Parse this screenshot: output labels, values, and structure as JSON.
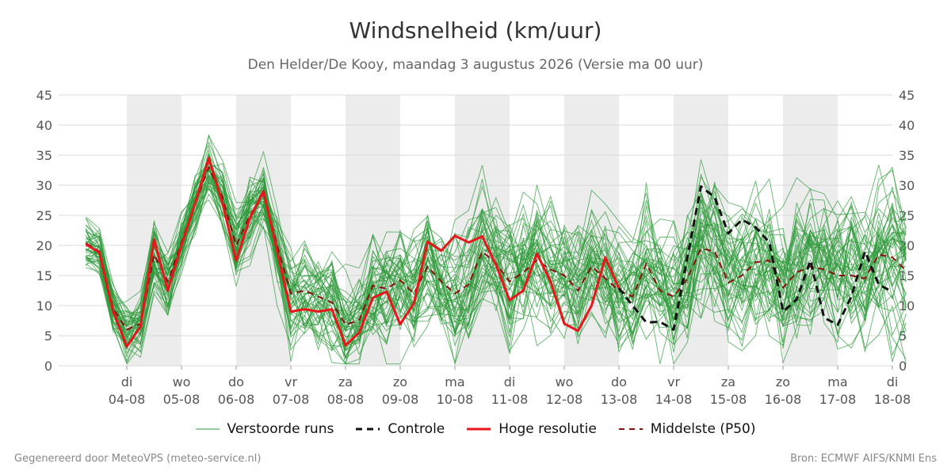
{
  "chart_data": {
    "type": "line",
    "title": "Windsnelheid (km/uur)",
    "subtitle": "Den Helder/De Kooy, maandag  3 augustus 2026 (Versie ma 00 uur)",
    "ylim": [
      0,
      45
    ],
    "yticks": [
      0,
      5,
      10,
      15,
      20,
      25,
      30,
      35,
      40,
      45
    ],
    "grid": true,
    "legend_position": "bottom",
    "x_axis": {
      "start": "03-08 06:00",
      "end": "18-08 00:00",
      "day_labels": [
        {
          "weekday": "di",
          "date": "04-08"
        },
        {
          "weekday": "wo",
          "date": "05-08"
        },
        {
          "weekday": "do",
          "date": "06-08"
        },
        {
          "weekday": "vr",
          "date": "07-08"
        },
        {
          "weekday": "za",
          "date": "08-08"
        },
        {
          "weekday": "zo",
          "date": "09-08"
        },
        {
          "weekday": "ma",
          "date": "10-08"
        },
        {
          "weekday": "di",
          "date": "11-08"
        },
        {
          "weekday": "wo",
          "date": "12-08"
        },
        {
          "weekday": "do",
          "date": "13-08"
        },
        {
          "weekday": "vr",
          "date": "14-08"
        },
        {
          "weekday": "za",
          "date": "15-08"
        },
        {
          "weekday": "zo",
          "date": "16-08"
        },
        {
          "weekday": "ma",
          "date": "17-08"
        },
        {
          "weekday": "di",
          "date": "18-08"
        }
      ]
    },
    "series": [
      {
        "name": "Hoge resolutie",
        "style": "solid",
        "color": "#e8161b",
        "points": [
          [
            "03-08 06:00",
            20.2
          ],
          [
            "03-08 12:00",
            18.8
          ],
          [
            "03-08 18:00",
            9.0
          ],
          [
            "04-08 00:00",
            3.2
          ],
          [
            "04-08 06:00",
            6.5
          ],
          [
            "04-08 12:00",
            21.0
          ],
          [
            "04-08 18:00",
            12.5
          ],
          [
            "05-08 00:00",
            20.0
          ],
          [
            "05-08 06:00",
            27.0
          ],
          [
            "05-08 12:00",
            34.5
          ],
          [
            "05-08 18:00",
            27.0
          ],
          [
            "06-08 00:00",
            17.5
          ],
          [
            "06-08 06:00",
            24.5
          ],
          [
            "06-08 12:00",
            29.0
          ],
          [
            "06-08 18:00",
            19.0
          ],
          [
            "07-08 00:00",
            9.0
          ],
          [
            "07-08 06:00",
            9.4
          ],
          [
            "07-08 12:00",
            9.0
          ],
          [
            "07-08 18:00",
            9.4
          ],
          [
            "08-08 00:00",
            3.4
          ],
          [
            "08-08 06:00",
            5.5
          ],
          [
            "08-08 12:00",
            11.3
          ],
          [
            "08-08 18:00",
            12.3
          ],
          [
            "09-08 00:00",
            6.9
          ],
          [
            "09-08 06:00",
            10.4
          ],
          [
            "09-08 12:00",
            20.6
          ],
          [
            "09-08 18:00",
            19.1
          ],
          [
            "10-08 00:00",
            21.6
          ],
          [
            "10-08 06:00",
            20.5
          ],
          [
            "10-08 12:00",
            21.5
          ],
          [
            "10-08 18:00",
            16.8
          ],
          [
            "11-08 00:00",
            10.9
          ],
          [
            "11-08 06:00",
            12.5
          ],
          [
            "11-08 12:00",
            18.6
          ],
          [
            "11-08 18:00",
            14.0
          ],
          [
            "12-08 00:00",
            7.0
          ],
          [
            "12-08 06:00",
            5.8
          ],
          [
            "12-08 12:00",
            10.0
          ],
          [
            "12-08 18:00",
            18.0
          ],
          [
            "13-08 00:00",
            12.9
          ]
        ]
      },
      {
        "name": "Middelste (P50)",
        "style": "dashed",
        "color": "#8b0e0e",
        "points": [
          [
            "03-08 06:00",
            20.4
          ],
          [
            "03-08 12:00",
            19.0
          ],
          [
            "03-08 18:00",
            9.5
          ],
          [
            "04-08 00:00",
            6.0
          ],
          [
            "04-08 06:00",
            7.0
          ],
          [
            "04-08 12:00",
            18.5
          ],
          [
            "04-08 18:00",
            14.0
          ],
          [
            "05-08 00:00",
            20.5
          ],
          [
            "05-08 06:00",
            27.0
          ],
          [
            "05-08 12:00",
            33.0
          ],
          [
            "05-08 18:00",
            28.0
          ],
          [
            "06-08 00:00",
            20.0
          ],
          [
            "06-08 06:00",
            25.0
          ],
          [
            "06-08 12:00",
            28.5
          ],
          [
            "06-08 18:00",
            20.0
          ],
          [
            "07-08 00:00",
            12.0
          ],
          [
            "07-08 06:00",
            12.5
          ],
          [
            "07-08 12:00",
            11.5
          ],
          [
            "07-08 18:00",
            10.5
          ],
          [
            "08-08 00:00",
            6.8
          ],
          [
            "08-08 06:00",
            7.6
          ],
          [
            "08-08 12:00",
            13.3
          ],
          [
            "08-08 18:00",
            12.8
          ],
          [
            "09-08 00:00",
            14.2
          ],
          [
            "09-08 06:00",
            12.0
          ],
          [
            "09-08 12:00",
            16.5
          ],
          [
            "09-08 18:00",
            14.0
          ],
          [
            "10-08 00:00",
            12.0
          ],
          [
            "10-08 06:00",
            13.5
          ],
          [
            "10-08 12:00",
            19.0
          ],
          [
            "10-08 18:00",
            17.0
          ],
          [
            "11-08 00:00",
            14.0
          ],
          [
            "11-08 06:00",
            15.5
          ],
          [
            "11-08 12:00",
            17.5
          ],
          [
            "11-08 18:00",
            16.0
          ],
          [
            "12-08 00:00",
            15.0
          ],
          [
            "12-08 06:00",
            12.5
          ],
          [
            "12-08 12:00",
            16.5
          ],
          [
            "12-08 18:00",
            14.5
          ],
          [
            "13-08 00:00",
            12.5
          ],
          [
            "13-08 06:00",
            11.5
          ],
          [
            "13-08 12:00",
            17.0
          ],
          [
            "13-08 18:00",
            12.5
          ],
          [
            "14-08 00:00",
            11.5
          ],
          [
            "14-08 06:00",
            14.5
          ],
          [
            "14-08 12:00",
            19.5
          ],
          [
            "14-08 18:00",
            19.0
          ],
          [
            "15-08 00:00",
            13.8
          ],
          [
            "15-08 06:00",
            15.0
          ],
          [
            "15-08 12:00",
            17.2
          ],
          [
            "15-08 18:00",
            17.5
          ],
          [
            "16-08 00:00",
            13.0
          ],
          [
            "16-08 06:00",
            15.5
          ],
          [
            "16-08 12:00",
            16.5
          ],
          [
            "16-08 18:00",
            16.0
          ],
          [
            "17-08 00:00",
            15.0
          ],
          [
            "17-08 06:00",
            15.0
          ],
          [
            "17-08 12:00",
            14.5
          ],
          [
            "17-08 18:00",
            18.5
          ],
          [
            "18-08 00:00",
            18.0
          ],
          [
            "18-08 06:00",
            15.8
          ]
        ]
      },
      {
        "name": "Controle",
        "style": "dashed",
        "color": "#111111",
        "points": [
          [
            "13-08 00:00",
            12.9
          ],
          [
            "13-08 06:00",
            10.0
          ],
          [
            "13-08 12:00",
            7.2
          ],
          [
            "13-08 18:00",
            7.3
          ],
          [
            "14-08 00:00",
            6.0
          ],
          [
            "14-08 06:00",
            18.0
          ],
          [
            "14-08 12:00",
            29.8
          ],
          [
            "14-08 18:00",
            28.0
          ],
          [
            "15-08 00:00",
            22.0
          ],
          [
            "15-08 06:00",
            24.3
          ],
          [
            "15-08 12:00",
            23.0
          ],
          [
            "15-08 18:00",
            20.5
          ],
          [
            "16-08 00:00",
            9.0
          ],
          [
            "16-08 06:00",
            11.0
          ],
          [
            "16-08 12:00",
            17.5
          ],
          [
            "16-08 18:00",
            8.0
          ],
          [
            "17-08 00:00",
            6.8
          ],
          [
            "17-08 06:00",
            11.5
          ],
          [
            "17-08 12:00",
            19.0
          ],
          [
            "17-08 18:00",
            13.5
          ],
          [
            "18-08 00:00",
            12.3
          ]
        ]
      }
    ],
    "ensemble": {
      "name": "Verstoorde runs",
      "color": "#2e9a3a",
      "member_count": 50,
      "median_reference": "Middelste (P50)",
      "spread_by_day": [
        [
          "03-08",
          3
        ],
        [
          "04-08",
          4
        ],
        [
          "05-08",
          4
        ],
        [
          "06-08",
          5
        ],
        [
          "07-08",
          6
        ],
        [
          "08-08",
          7
        ],
        [
          "09-08",
          7
        ],
        [
          "10-08",
          8
        ],
        [
          "11-08",
          8
        ],
        [
          "12-08",
          8
        ],
        [
          "13-08",
          8
        ],
        [
          "14-08",
          9
        ],
        [
          "15-08",
          9
        ],
        [
          "16-08",
          9
        ],
        [
          "17-08",
          9
        ],
        [
          "18-08",
          10
        ]
      ]
    }
  },
  "legend": {
    "ensemble": "Verstoorde runs",
    "control": "Controle",
    "hires": "Hoge resolutie",
    "median": "Middelste (P50)"
  },
  "footer": {
    "left": "Gegenereerd door MeteoVPS (meteo-service.nl)",
    "right": "Bron: ECMWF AIFS/KNMI Ens"
  }
}
